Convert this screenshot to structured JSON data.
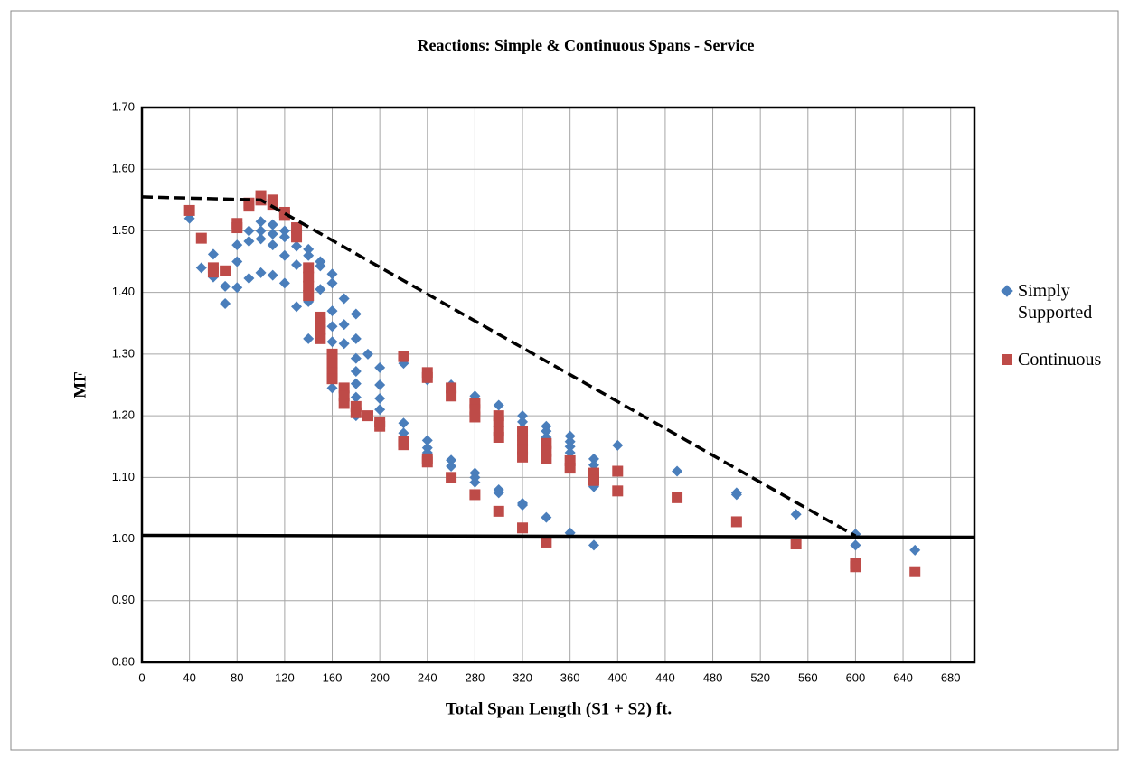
{
  "chart_data": {
    "type": "scatter",
    "title": "Reactions:  Simple & Continuous Spans - Service",
    "x_label": "Total Span Length (S1 + S2) ft.",
    "y_label": "MF",
    "xlim": [
      0,
      700
    ],
    "ylim": [
      0.8,
      1.7
    ],
    "xticks": [
      0,
      40,
      80,
      120,
      160,
      200,
      240,
      280,
      320,
      360,
      400,
      440,
      480,
      520,
      560,
      600,
      640,
      680
    ],
    "yticks": [
      {
        "value": 0.8,
        "label": "0.80"
      },
      {
        "value": 0.9,
        "label": "0.90"
      },
      {
        "value": 1.0,
        "label": "1.00"
      },
      {
        "value": 1.1,
        "label": "1.10"
      },
      {
        "value": 1.2,
        "label": "1.20"
      },
      {
        "value": 1.3,
        "label": "1.30"
      },
      {
        "value": 1.4,
        "label": "1.40"
      },
      {
        "value": 1.5,
        "label": "1.50"
      },
      {
        "value": 1.6,
        "label": "1.60"
      },
      {
        "value": 1.7,
        "label": "1.70"
      }
    ],
    "grid": true,
    "legend": "right",
    "series": [
      {
        "name": "Simply Supported",
        "color": "#4a7ebb",
        "marker": "diamond",
        "x": [
          40,
          50,
          60,
          60,
          70,
          70,
          80,
          80,
          80,
          90,
          90,
          90,
          100,
          100,
          100,
          100,
          110,
          110,
          110,
          110,
          120,
          120,
          120,
          120,
          130,
          130,
          130,
          140,
          140,
          140,
          140,
          150,
          150,
          150,
          150,
          160,
          160,
          160,
          160,
          160,
          160,
          170,
          170,
          170,
          180,
          180,
          180,
          180,
          180,
          180,
          180,
          190,
          200,
          200,
          200,
          200,
          220,
          220,
          220,
          240,
          240,
          240,
          240,
          240,
          260,
          260,
          260,
          280,
          280,
          280,
          280,
          300,
          300,
          300,
          320,
          320,
          320,
          320,
          320,
          320,
          340,
          340,
          340,
          340,
          360,
          360,
          360,
          360,
          360,
          360,
          380,
          380,
          380,
          380,
          400,
          450,
          500,
          500,
          550,
          600,
          600,
          650
        ],
        "y": [
          1.52,
          1.44,
          1.462,
          1.425,
          1.41,
          1.382,
          1.477,
          1.45,
          1.408,
          1.5,
          1.483,
          1.423,
          1.515,
          1.5,
          1.487,
          1.432,
          1.51,
          1.495,
          1.477,
          1.428,
          1.5,
          1.49,
          1.46,
          1.415,
          1.475,
          1.445,
          1.377,
          1.47,
          1.46,
          1.385,
          1.325,
          1.45,
          1.443,
          1.405,
          1.36,
          1.43,
          1.415,
          1.37,
          1.345,
          1.32,
          1.245,
          1.39,
          1.348,
          1.317,
          1.365,
          1.325,
          1.293,
          1.272,
          1.252,
          1.23,
          1.2,
          1.3,
          1.278,
          1.25,
          1.228,
          1.21,
          1.188,
          1.172,
          1.285,
          1.16,
          1.148,
          1.14,
          1.135,
          1.258,
          1.128,
          1.118,
          1.25,
          1.107,
          1.1,
          1.092,
          1.232,
          1.217,
          1.08,
          1.075,
          1.2,
          1.19,
          1.18,
          1.16,
          1.058,
          1.055,
          1.183,
          1.175,
          1.165,
          1.035,
          1.167,
          1.158,
          1.15,
          1.14,
          1.13,
          1.01,
          1.13,
          1.12,
          1.085,
          0.99,
          1.152,
          1.11,
          1.075,
          1.072,
          1.04,
          1.008,
          0.99,
          0.982
        ]
      },
      {
        "name": "Continuous",
        "color": "#be4b48",
        "marker": "square",
        "x": [
          40,
          50,
          60,
          60,
          70,
          80,
          80,
          90,
          90,
          100,
          100,
          110,
          110,
          120,
          120,
          130,
          130,
          140,
          140,
          140,
          140,
          150,
          150,
          150,
          150,
          160,
          160,
          160,
          160,
          170,
          170,
          170,
          180,
          180,
          190,
          200,
          200,
          220,
          220,
          220,
          240,
          240,
          240,
          240,
          260,
          260,
          260,
          280,
          280,
          280,
          280,
          300,
          300,
          300,
          300,
          300,
          320,
          320,
          320,
          320,
          320,
          340,
          340,
          340,
          340,
          360,
          360,
          380,
          380,
          380,
          400,
          400,
          450,
          500,
          550,
          600,
          600,
          650
        ],
        "y": [
          1.533,
          1.488,
          1.44,
          1.433,
          1.435,
          1.512,
          1.505,
          1.545,
          1.54,
          1.557,
          1.55,
          1.55,
          1.543,
          1.53,
          1.525,
          1.505,
          1.49,
          1.44,
          1.425,
          1.41,
          1.395,
          1.36,
          1.35,
          1.34,
          1.325,
          1.3,
          1.285,
          1.27,
          1.26,
          1.245,
          1.232,
          1.22,
          1.215,
          1.205,
          1.2,
          1.19,
          1.183,
          1.296,
          1.158,
          1.153,
          1.27,
          1.262,
          1.13,
          1.125,
          1.245,
          1.232,
          1.1,
          1.22,
          1.21,
          1.198,
          1.072,
          1.2,
          1.19,
          1.175,
          1.165,
          1.045,
          1.175,
          1.16,
          1.145,
          1.133,
          1.018,
          1.155,
          1.142,
          1.13,
          0.995,
          1.127,
          1.115,
          1.107,
          1.1,
          1.095,
          1.11,
          1.078,
          1.067,
          1.028,
          0.992,
          0.96,
          0.955,
          0.947
        ]
      }
    ],
    "lines": [
      {
        "color": "#000000",
        "dash": true,
        "x": [
          0,
          100,
          600
        ],
        "y": [
          1.555,
          1.55,
          1.005
        ]
      },
      {
        "color": "#000000",
        "dash": false,
        "x": [
          0,
          700
        ],
        "y": [
          1.006,
          1.003
        ]
      }
    ]
  }
}
